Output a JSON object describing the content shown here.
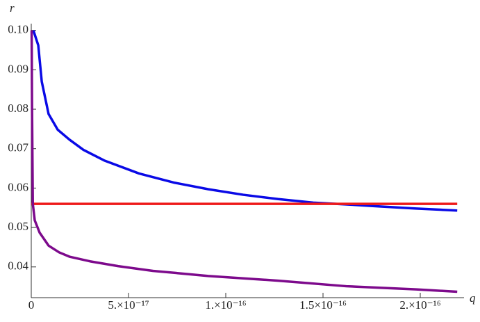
{
  "chart_data": {
    "type": "line",
    "x_label": "q",
    "y_label": "r",
    "xlim": [
      0,
      2.2e-16
    ],
    "ylim": [
      0.0322,
      0.101
    ],
    "xticks": [
      0,
      {
        "value": 5e-17,
        "label": "5.×10⁻¹⁷"
      },
      {
        "value": 1e-16,
        "label": "1.×10⁻¹⁶"
      },
      {
        "value": 1.5e-16,
        "label": "1.5×10⁻¹⁶"
      },
      {
        "value": 2e-16,
        "label": "2.×10⁻¹⁶"
      }
    ],
    "yticks": [
      0.04,
      0.05,
      0.06,
      0.07,
      0.08,
      0.09,
      {
        "value": 0.1,
        "label": "0.10"
      }
    ],
    "series": [
      {
        "color": "#0a0ae6",
        "x": [
          1.1e-18,
          3.6e-18,
          5.4e-18,
          8.9e-18,
          1.36e-17,
          1.96e-17,
          2.68e-17,
          3.75e-17,
          5.54e-17,
          7.32e-17,
          9.11e-17,
          1.09e-16,
          1.27e-16,
          1.45e-16,
          1.64e-16,
          1.8e-16,
          1.98e-16,
          2.19e-16
        ],
        "values": [
          0.1,
          0.0962,
          0.087,
          0.0788,
          0.0748,
          0.0723,
          0.0697,
          0.067,
          0.0637,
          0.0614,
          0.0597,
          0.0583,
          0.0572,
          0.0563,
          0.0558,
          0.0553,
          0.0548,
          0.0543
        ]
      },
      {
        "color": "#ee1a1a",
        "x": [
          0,
          2.19e-16
        ],
        "values": [
          0.056,
          0.056
        ]
      },
      {
        "color": "#7d0a8c",
        "x": [
          2e-19,
          4e-19,
          8e-19,
          1.8e-18,
          4.3e-18,
          8.9e-18,
          1.43e-17,
          1.96e-17,
          3.04e-17,
          4.46e-17,
          6.25e-17,
          9.11e-17,
          1.27e-16,
          1.62e-16,
          1.98e-16,
          2.19e-16
        ],
        "values": [
          0.1,
          0.0805,
          0.056,
          0.0518,
          0.0487,
          0.0454,
          0.0437,
          0.0426,
          0.0414,
          0.0402,
          0.039,
          0.0377,
          0.0365,
          0.0351,
          0.0343,
          0.0337
        ]
      }
    ]
  }
}
